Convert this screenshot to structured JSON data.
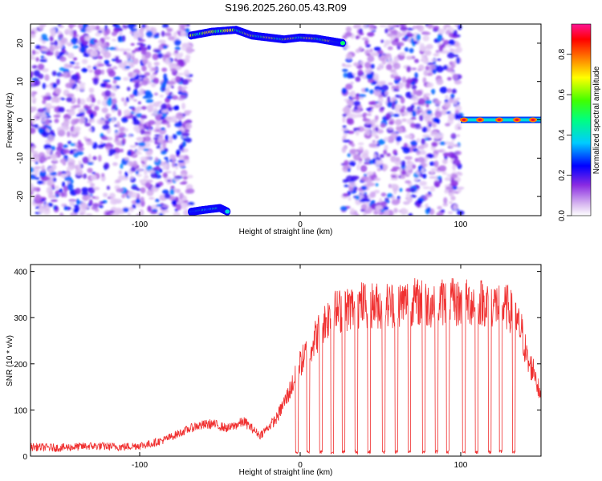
{
  "figure_title": "S196.2025.260.05.43.R09",
  "chart_data": [
    {
      "type": "heatmap",
      "title": "S196.2025.260.05.43.R09",
      "xlabel": "Height of straight line (km)",
      "ylabel": "Frequency (Hz)",
      "xlim": [
        -168,
        150
      ],
      "ylim": [
        -25,
        25
      ],
      "xticks": [
        -100,
        0,
        100
      ],
      "xtick_labels": [
        "-100",
        "0",
        "100"
      ],
      "yticks": [
        -20,
        -10,
        0,
        10,
        20
      ],
      "ytick_labels": [
        "-20",
        "-10",
        "0",
        "10",
        "20"
      ],
      "colorbar": {
        "label": "Normalized spectral amplitude",
        "range": [
          0.0,
          0.95
        ],
        "ticks": [
          0.0,
          0.2,
          0.4,
          0.6,
          0.8
        ],
        "tick_labels": [
          "0.0",
          "0.2",
          "0.4",
          "0.6",
          "0.8"
        ],
        "colormap": [
          "#ffffff",
          "#d8b8f0",
          "#8a2be2",
          "#0000ff",
          "#00ffff",
          "#00ff00",
          "#ffff00",
          "#ff8000",
          "#ff0000",
          "#ff1493"
        ]
      },
      "regions": [
        {
          "x": [
            -168,
            -68
          ],
          "description_type": "noise",
          "mean_amplitude": 0.12
        },
        {
          "x": [
            -68,
            27
          ],
          "description_type": "signal",
          "signal_track": {
            "x": [
              -68,
              -55,
              -40,
              -30,
              -20,
              -10,
              0,
              10,
              20,
              27
            ],
            "freq_hz": [
              22,
              23,
              23.5,
              22,
              21.5,
              21,
              21.5,
              21.2,
              20.5,
              20
            ]
          },
          "aliased_track": {
            "x": [
              -68,
              -60,
              -50,
              -45
            ],
            "freq_hz": [
              -24,
              -23.5,
              -23,
              -24
            ]
          }
        },
        {
          "x": [
            27,
            100
          ],
          "description_type": "noise",
          "mean_amplitude": 0.1
        },
        {
          "x": [
            100,
            150
          ],
          "description_type": "carrier",
          "freq_hz": 0,
          "peaks_x": [
            102,
            112,
            124,
            135,
            145
          ]
        }
      ]
    },
    {
      "type": "line",
      "xlabel": "Height of straight line (km)",
      "ylabel": "SNR (10 * v/v)",
      "xlim": [
        -168,
        150
      ],
      "ylim": [
        0,
        415
      ],
      "xticks": [
        -100,
        0,
        100
      ],
      "xtick_labels": [
        "-100",
        "0",
        "100"
      ],
      "yticks": [
        0,
        100,
        200,
        300,
        400
      ],
      "ytick_labels": [
        "0",
        "100",
        "200",
        "300",
        "400"
      ],
      "color": "#f03030",
      "series": [
        {
          "x": [
            -168,
            -150,
            -130,
            -110,
            -95,
            -85,
            -75,
            -65,
            -55,
            -45,
            -35,
            -25,
            -15,
            -8,
            -3,
            0,
            5,
            10,
            15,
            20,
            30,
            40,
            50,
            60,
            70,
            80,
            90,
            100,
            110,
            120,
            130,
            138,
            142,
            146,
            150
          ],
          "values": [
            20,
            18,
            22,
            20,
            25,
            35,
            50,
            65,
            70,
            60,
            75,
            45,
            80,
            130,
            170,
            200,
            230,
            260,
            290,
            310,
            320,
            330,
            325,
            330,
            335,
            330,
            335,
            330,
            335,
            330,
            320,
            270,
            200,
            185,
            120
          ],
          "dropouts_x": [
            -2,
            5,
            13,
            20,
            27,
            35,
            43,
            52,
            60,
            68,
            77,
            85,
            92,
            102,
            110,
            118,
            125,
            133
          ]
        }
      ]
    }
  ]
}
